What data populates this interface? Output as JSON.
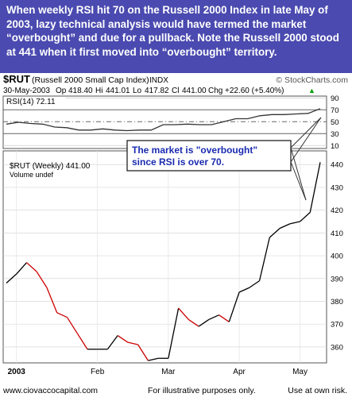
{
  "intro": {
    "text": "When weekly RSI hit 70 on the Russell 2000 Index in late May of 2003, lazy technical analysis would have termed the market “overbought” and due for a pullback.  Note the Russell 2000 stood at 441 when it first moved into “overbought” territory.",
    "background": "#4a4ab0"
  },
  "header": {
    "symbol": "$RUT",
    "name": "(Russell 2000 Small Cap Index)",
    "exchange": "INDX",
    "watermark": "© StockCharts.com",
    "date": "30-May-2003",
    "op_label": "Op",
    "op": "418.40",
    "hi_label": "Hi",
    "hi": "441.01",
    "lo_label": "Lo",
    "lo": "417.82",
    "cl_label": "Cl",
    "cl": "441.00",
    "chg_label": "Chg",
    "chg": "+22.60 (+5.40%)",
    "chg_arrow": "▲",
    "chg_color": "#00a000"
  },
  "annotation": {
    "line1": "The market is \"overbought\"",
    "line2": "since RSI is over 70.",
    "color": "#1a2bb0"
  },
  "footer": {
    "left": "www.ciovaccocapital.com",
    "center": "For illustrative purposes only.",
    "right": "Use at own risk."
  },
  "chart_data": [
    {
      "type": "line",
      "legend": "RSI(14) 72.11",
      "ylim": [
        5,
        93
      ],
      "yticks": [
        10,
        30,
        50,
        70,
        90
      ],
      "reference_lines": [
        30,
        50,
        70
      ],
      "series": [
        {
          "name": "RSI(14)",
          "color": "#333333",
          "values": [
            46,
            49,
            47,
            46,
            41,
            40,
            36,
            36,
            38,
            36,
            35,
            36,
            36,
            45,
            45,
            46,
            45,
            45,
            50,
            55,
            55,
            60,
            62,
            62,
            63,
            64,
            72
          ]
        }
      ]
    },
    {
      "type": "line",
      "legend": "$RUT (Weekly) 441.00",
      "legend2": "Volume undef",
      "ylim": [
        353,
        446
      ],
      "yticks": [
        360,
        370,
        380,
        390,
        400,
        410,
        420,
        430,
        440
      ],
      "x_labels": [
        {
          "index": 1,
          "label": "2003"
        },
        {
          "index": 9,
          "label": "Feb"
        },
        {
          "index": 16,
          "label": "Mar"
        },
        {
          "index": 23,
          "label": "Apr"
        },
        {
          "index": 29,
          "label": "May"
        }
      ],
      "series": [
        {
          "name": "$RUT (Weekly)",
          "up_color": "#000000",
          "down_color": "#cc0000",
          "values": [
            388,
            392,
            397,
            393,
            386,
            375,
            373,
            366,
            359,
            359,
            359,
            365,
            362,
            361,
            354,
            355,
            355,
            377,
            372,
            369,
            372,
            374,
            371,
            384,
            386,
            389,
            408,
            412,
            414,
            415,
            419,
            441
          ]
        }
      ]
    }
  ]
}
